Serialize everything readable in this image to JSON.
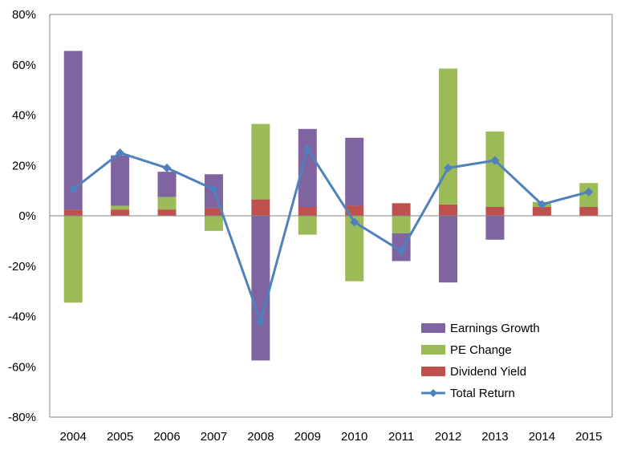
{
  "chart_data": {
    "type": "bar",
    "stacked": true,
    "categories": [
      "2004",
      "2005",
      "2006",
      "2007",
      "2008",
      "2009",
      "2010",
      "2011",
      "2012",
      "2013",
      "2014",
      "2015"
    ],
    "series": [
      {
        "name": "Dividend Yield",
        "type": "bar",
        "color": "#C0504D",
        "values": [
          2.5,
          2.5,
          2.5,
          3.0,
          6.5,
          3.5,
          4.0,
          5.0,
          4.5,
          3.5,
          3.5,
          3.5
        ]
      },
      {
        "name": "PE Change",
        "type": "bar",
        "color": "#9BBB59",
        "values": [
          -34.5,
          1.5,
          5.0,
          -6.0,
          30.0,
          -7.5,
          -26.0,
          -7.0,
          54.0,
          30.0,
          2.0,
          9.5
        ]
      },
      {
        "name": "Earnings Growth",
        "type": "bar",
        "color": "#8064A2",
        "values": [
          63.0,
          20.0,
          10.0,
          13.5,
          -57.5,
          31.0,
          27.0,
          -11.0,
          -26.5,
          -9.5,
          0,
          0
        ]
      },
      {
        "name": "Total Return",
        "type": "line",
        "color": "#4F81BD",
        "values": [
          10.5,
          25.0,
          19.0,
          10.5,
          -42.0,
          26.5,
          -2.5,
          -14.0,
          19.0,
          22.0,
          4.5,
          9.5
        ]
      }
    ],
    "legend_order": [
      "Earnings Growth",
      "PE Change",
      "Dividend Yield",
      "Total Return"
    ],
    "title": "",
    "xlabel": "",
    "ylabel": "",
    "ylim": [
      -80,
      80
    ],
    "y_ticks": [
      80,
      60,
      40,
      20,
      0,
      -20,
      -40,
      -60,
      -80
    ],
    "y_tick_format": "percent",
    "grid": false,
    "legend_position": "bottom-right"
  }
}
